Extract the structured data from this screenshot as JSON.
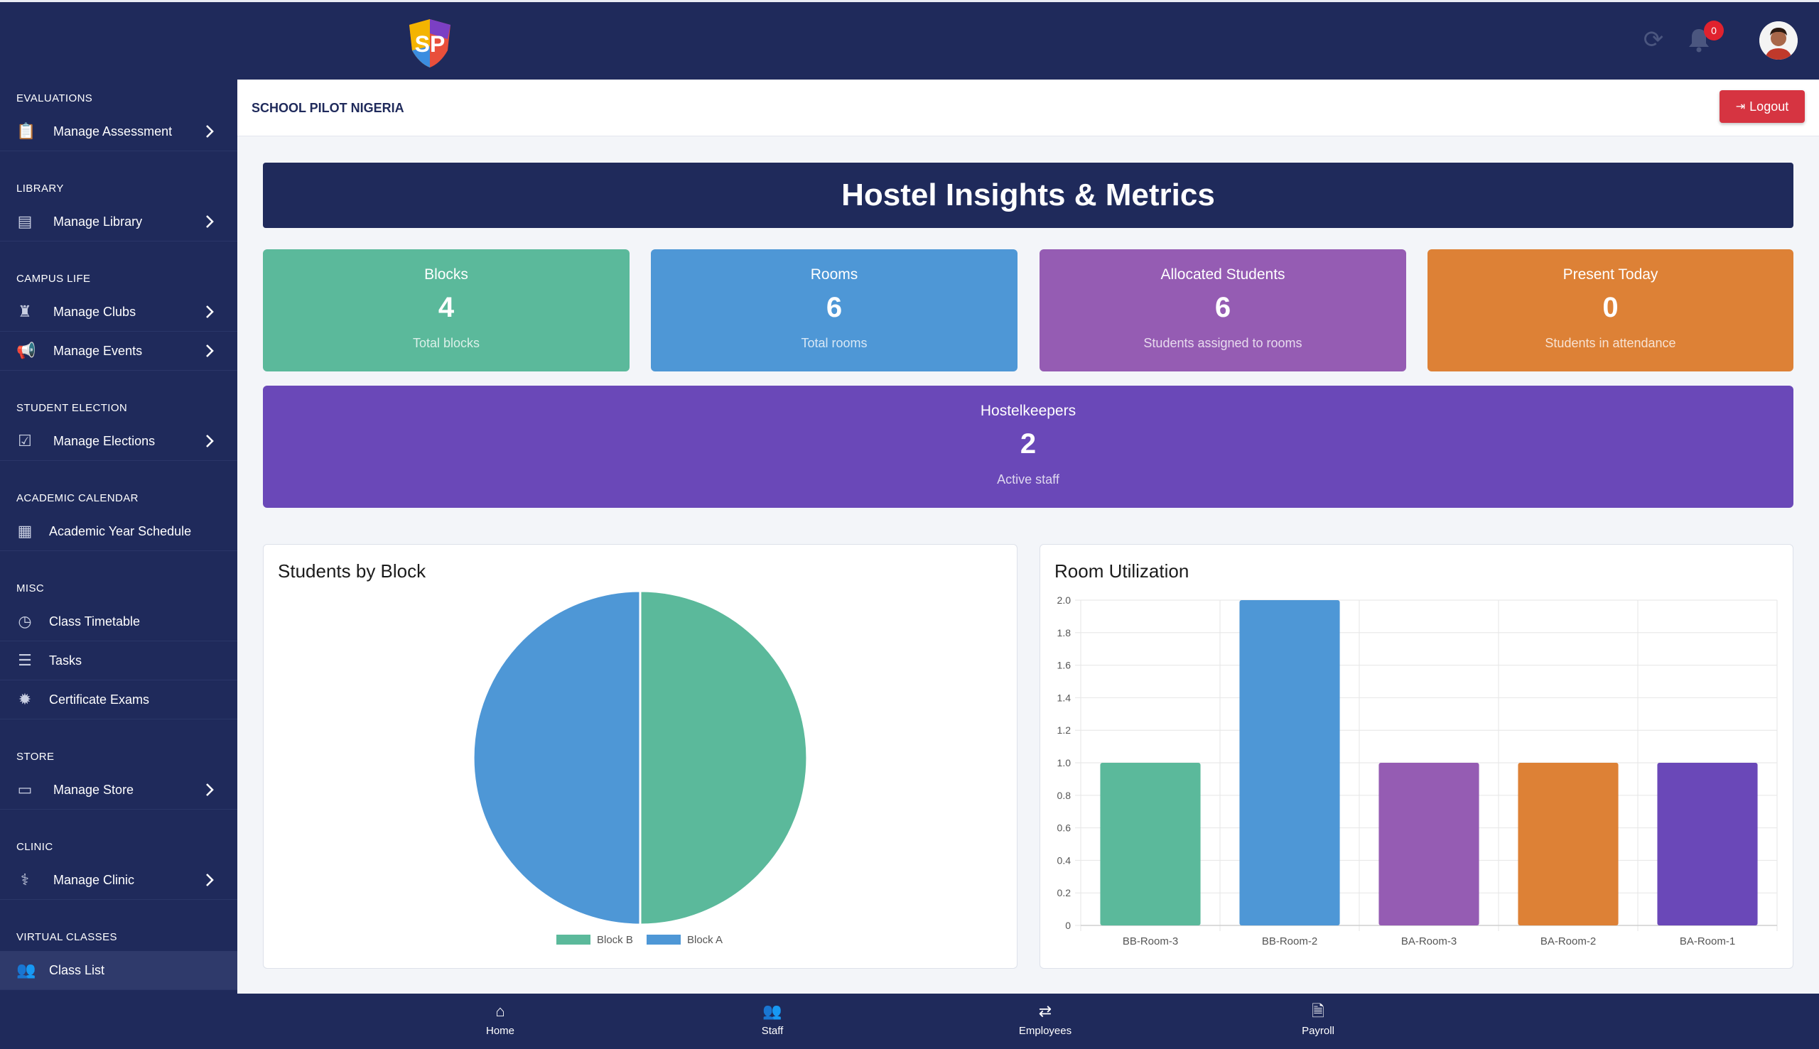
{
  "header": {
    "logo_text": "SP",
    "notification_count": "0"
  },
  "sidebar": {
    "sections": [
      {
        "title": "EVALUATIONS",
        "items": [
          {
            "label": "Manage Assessment",
            "icon": "clipboard-check-icon",
            "has_chevron": true
          }
        ]
      },
      {
        "title": "LIBRARY",
        "items": [
          {
            "label": "Manage Library",
            "icon": "book-icon",
            "has_chevron": true
          }
        ]
      },
      {
        "title": "CAMPUS LIFE",
        "items": [
          {
            "label": "Manage Clubs",
            "icon": "chess-icon",
            "has_chevron": true
          },
          {
            "label": "Manage Events",
            "icon": "bullhorn-icon",
            "has_chevron": true
          }
        ]
      },
      {
        "title": "STUDENT ELECTION",
        "items": [
          {
            "label": "Manage Elections",
            "icon": "ballot-box-icon",
            "has_chevron": true
          }
        ]
      },
      {
        "title": "ACADEMIC CALENDAR",
        "items": [
          {
            "label": "Academic Year Schedule",
            "icon": "calendar-icon",
            "has_chevron": false
          }
        ]
      },
      {
        "title": "MISC",
        "items": [
          {
            "label": "Class Timetable",
            "icon": "clock-icon",
            "has_chevron": false
          },
          {
            "label": "Tasks",
            "icon": "tasks-icon",
            "has_chevron": false
          },
          {
            "label": "Certificate Exams",
            "icon": "certificate-icon",
            "has_chevron": false
          }
        ]
      },
      {
        "title": "STORE",
        "items": [
          {
            "label": "Manage Store",
            "icon": "store-icon",
            "has_chevron": true
          }
        ]
      },
      {
        "title": "CLINIC",
        "items": [
          {
            "label": "Manage Clinic",
            "icon": "stethoscope-icon",
            "has_chevron": true
          }
        ]
      },
      {
        "title": "VIRTUAL CLASSES",
        "items": [
          {
            "label": "Class List",
            "icon": "users-icon",
            "has_chevron": false
          }
        ]
      }
    ]
  },
  "subbar": {
    "school_name": "SCHOOL PILOT NIGERIA",
    "logout_label": "Logout"
  },
  "banner": {
    "title": "Hostel Insights & Metrics"
  },
  "stats": [
    {
      "title": "Blocks",
      "value": "4",
      "subtitle": "Total blocks",
      "color": "#5bb99b"
    },
    {
      "title": "Rooms",
      "value": "6",
      "subtitle": "Total rooms",
      "color": "#4e97d6"
    },
    {
      "title": "Allocated Students",
      "value": "6",
      "subtitle": "Students assigned to rooms",
      "color": "#955cb3"
    },
    {
      "title": "Present Today",
      "value": "0",
      "subtitle": "Students in attendance",
      "color": "#dd8136"
    },
    {
      "title": "Hostelkeepers",
      "value": "2",
      "subtitle": "Active staff",
      "color": "#6a48b8"
    }
  ],
  "chart_data": [
    {
      "type": "pie",
      "title": "Students by Block",
      "categories": [
        "Block B",
        "Block A"
      ],
      "values": [
        3,
        3
      ],
      "colors": [
        "#5bb99b",
        "#4e97d6"
      ],
      "legend": "bottom"
    },
    {
      "type": "bar",
      "title": "Room Utilization",
      "categories": [
        "BB-Room-3",
        "BB-Room-2",
        "BA-Room-3",
        "BA-Room-2",
        "BA-Room-1"
      ],
      "values": [
        1,
        2,
        1,
        1,
        1
      ],
      "colors": [
        "#5bb99b",
        "#4e97d6",
        "#955cb3",
        "#dd8136",
        "#6a48b8"
      ],
      "ylim": [
        0,
        2.0
      ],
      "yticks": [
        "0",
        "0.2",
        "0.4",
        "0.6",
        "0.8",
        "1.0",
        "1.2",
        "1.4",
        "1.6",
        "1.8",
        "2.0"
      ],
      "grid": true
    }
  ],
  "bottom_nav": [
    {
      "label": "Home",
      "icon": "home-icon"
    },
    {
      "label": "Staff",
      "icon": "users-icon"
    },
    {
      "label": "Employees",
      "icon": "exchange-icon"
    },
    {
      "label": "Payroll",
      "icon": "file-invoice-icon"
    }
  ]
}
